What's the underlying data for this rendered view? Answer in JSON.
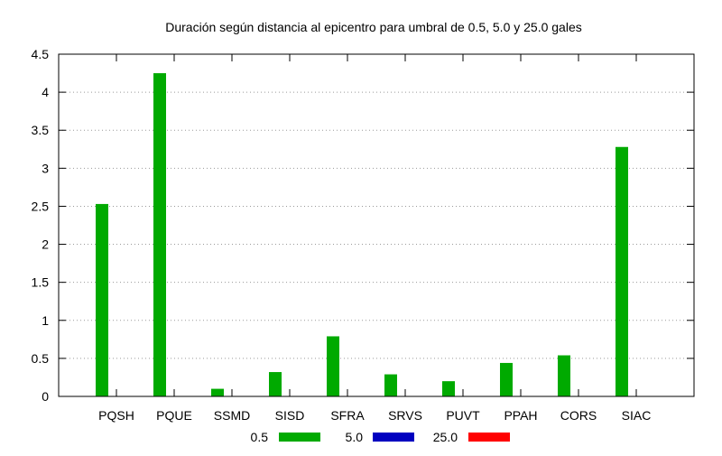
{
  "chart_data": {
    "type": "bar",
    "title": "Duración según distancia al epicentro para umbral de 0.5, 5.0 y 25.0 gales",
    "xlabel": "",
    "ylabel": "",
    "categories": [
      "PQSH",
      "PQUE",
      "SSMD",
      "SISD",
      "SFRA",
      "SRVS",
      "PUVT",
      "PPAH",
      "CORS",
      "SIAC"
    ],
    "series": [
      {
        "name": "0.5",
        "color": "#00aa00",
        "values": [
          2.53,
          4.25,
          0.1,
          0.32,
          0.79,
          0.29,
          0.2,
          0.44,
          0.54,
          3.28
        ]
      },
      {
        "name": "5.0",
        "color": "#0000c0",
        "values": [
          0,
          0,
          0,
          0,
          0,
          0,
          0,
          0,
          0,
          0
        ]
      },
      {
        "name": "25.0",
        "color": "#ff0000",
        "values": [
          0,
          0,
          0,
          0,
          0,
          0,
          0,
          0,
          0,
          0
        ]
      }
    ],
    "ylim": [
      0,
      4.5
    ],
    "yticks": [
      0,
      0.5,
      1,
      1.5,
      2,
      2.5,
      3,
      3.5,
      4,
      4.5
    ],
    "ytick_labels": [
      "0",
      "0.5",
      "1",
      "1.5",
      "2",
      "2.5",
      "3",
      "3.5",
      "4",
      "4.5"
    ],
    "grid": true,
    "legend_position": "bottom"
  }
}
